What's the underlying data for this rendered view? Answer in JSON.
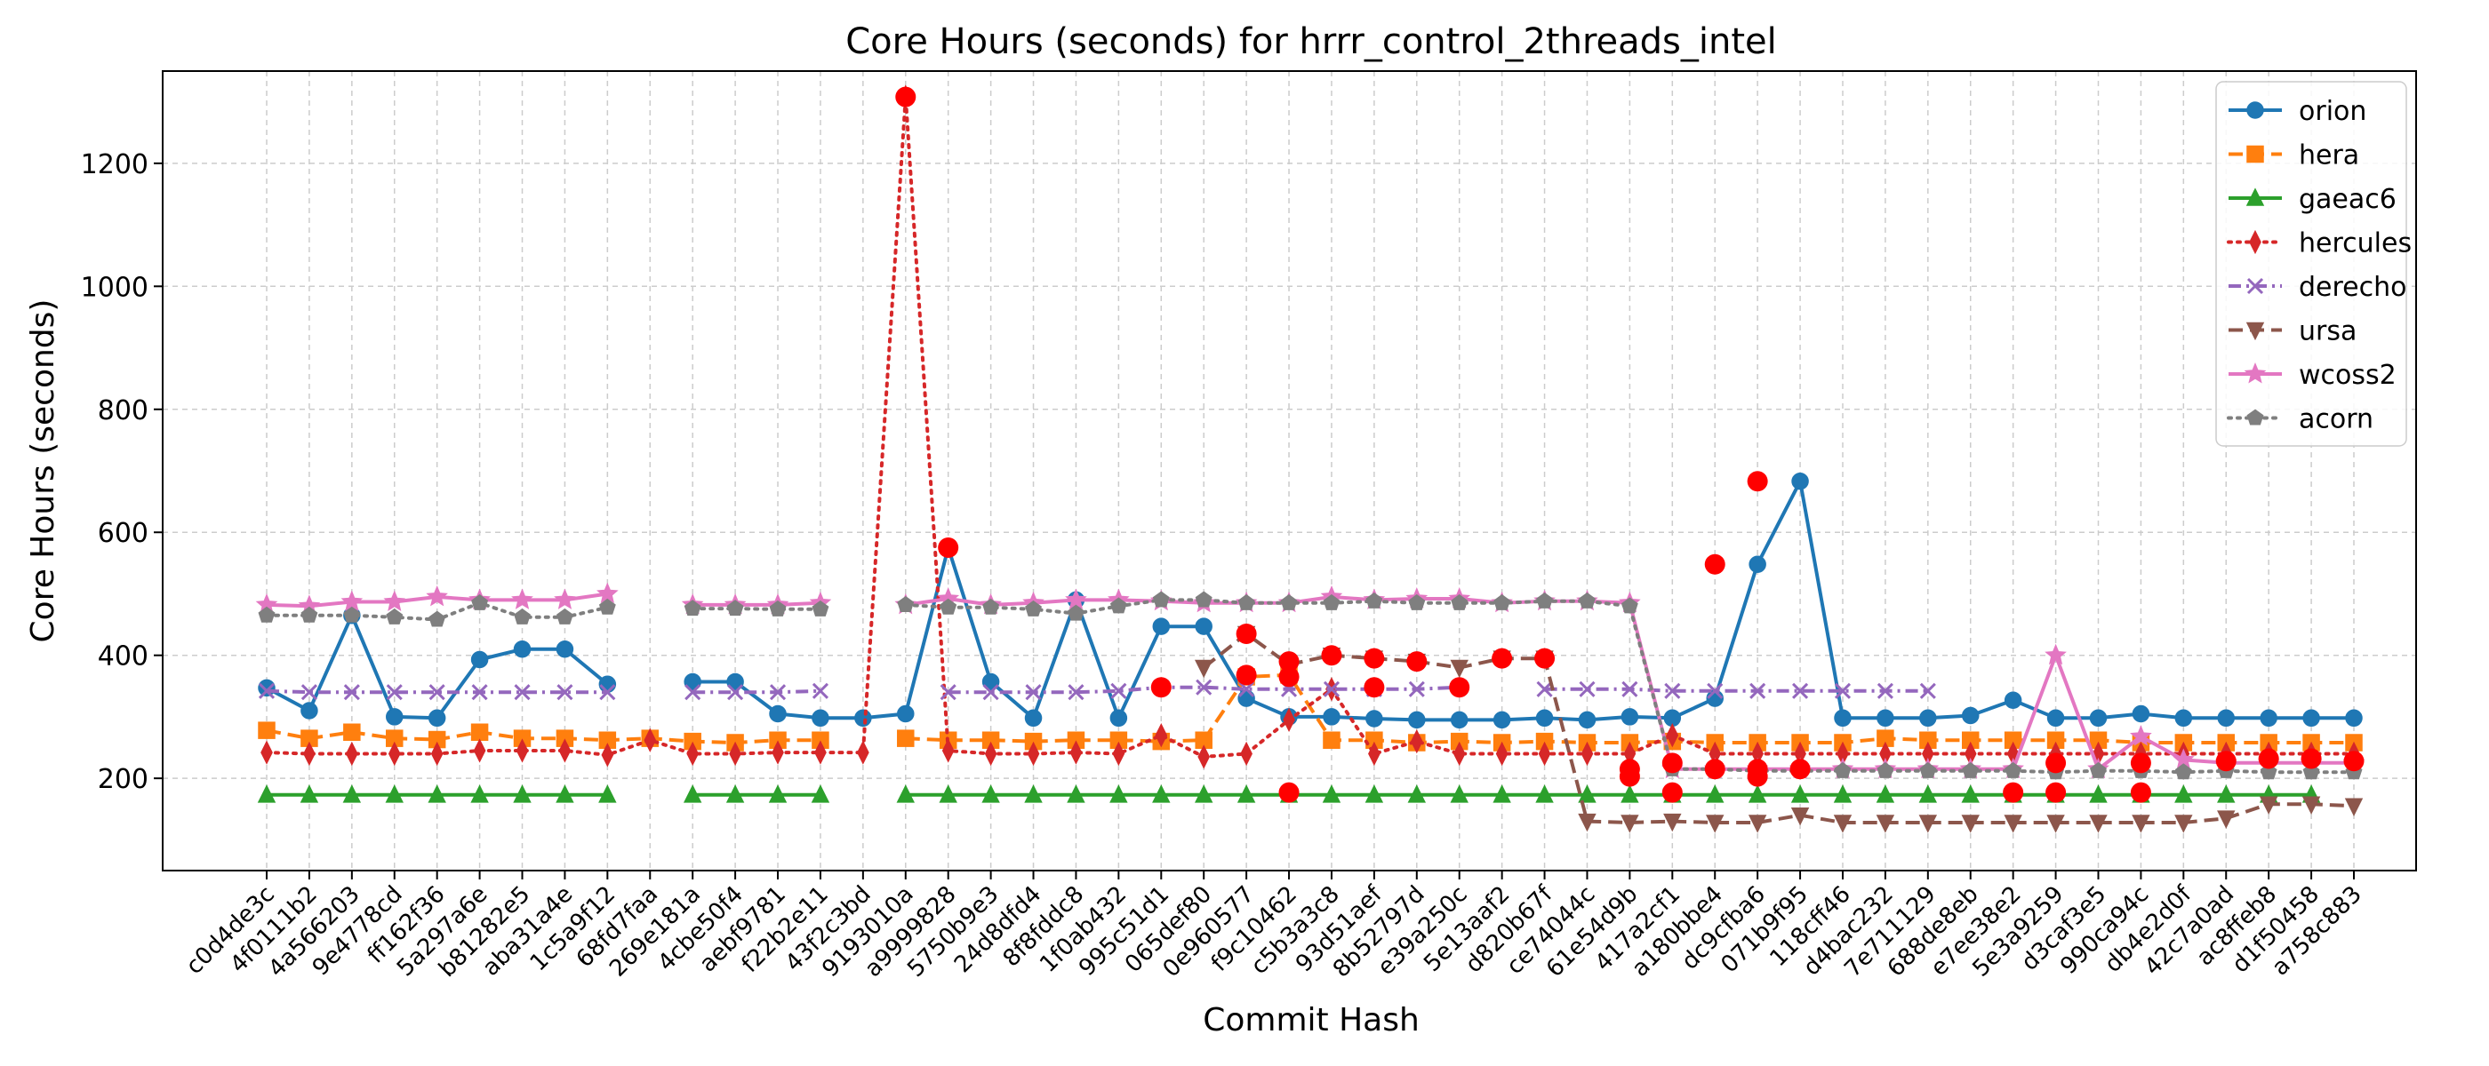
{
  "chart_data": {
    "type": "line",
    "title": "Core Hours (seconds) for hrrr_control_2threads_intel",
    "xlabel": "Commit Hash",
    "ylabel": "Core Hours (seconds)",
    "ylim": [
      50,
      1350
    ],
    "yticks": [
      200,
      400,
      600,
      800,
      1000,
      1200
    ],
    "grid": true,
    "legend_position": "top-right",
    "categories": [
      "c0d4de3c",
      "4f0111b2",
      "4a566203",
      "9e4778cd",
      "ff162f36",
      "5a297a6e",
      "b81282e5",
      "aba31a4e",
      "1c5a9f12",
      "68fd7faa",
      "269e181a",
      "4cbe50f4",
      "aebf9781",
      "f22b2e11",
      "43f2c3bd",
      "9193010a",
      "a9999828",
      "5750b9e3",
      "24d8dfd4",
      "8f8fddc8",
      "1f0ab432",
      "995c51d1",
      "065def80",
      "0e960577",
      "f9c10462",
      "c5b3a3c8",
      "93d51aef",
      "8b52797d",
      "e39a250c",
      "5e13aaf2",
      "d820b67f",
      "ce74044c",
      "61e54d9b",
      "417a2cf1",
      "a180bbe4",
      "dc9cfba6",
      "071b9f95",
      "118cff46",
      "d4bac232",
      "7e711129",
      "688de8eb",
      "e7ee38e2",
      "5e3a9259",
      "d3caf3e5",
      "990ca94c",
      "db4e2d0f",
      "42c7a0ad",
      "ac8ffeb8",
      "d1f50458",
      "a758c883"
    ],
    "series": [
      {
        "name": "orion",
        "color": "#1f77b4",
        "marker": "circle",
        "dash": "solid",
        "values": [
          347,
          310,
          465,
          300,
          298,
          393,
          410,
          410,
          353,
          null,
          357,
          357,
          305,
          298,
          298,
          305,
          575,
          357,
          298,
          490,
          298,
          447,
          447,
          330,
          300,
          300,
          297,
          295,
          295,
          295,
          298,
          295,
          300,
          298,
          330,
          548,
          683,
          298,
          298,
          298,
          302,
          327,
          298,
          298,
          305,
          298,
          298,
          298,
          298,
          298
        ]
      },
      {
        "name": "hera",
        "color": "#ff7f0e",
        "marker": "square",
        "dash": "dashed",
        "values": [
          278,
          265,
          275,
          265,
          263,
          275,
          265,
          265,
          262,
          265,
          260,
          258,
          262,
          262,
          null,
          265,
          262,
          262,
          260,
          262,
          262,
          260,
          262,
          365,
          368,
          262,
          262,
          258,
          260,
          258,
          260,
          258,
          258,
          260,
          258,
          258,
          258,
          258,
          265,
          262,
          262,
          262,
          262,
          262,
          258,
          258,
          258,
          258,
          258,
          258
        ]
      },
      {
        "name": "gaeac6",
        "color": "#2ca02c",
        "marker": "triangle-up",
        "dash": "solid",
        "values": [
          173,
          173,
          173,
          173,
          173,
          173,
          173,
          173,
          173,
          null,
          173,
          173,
          173,
          173,
          null,
          173,
          173,
          173,
          173,
          173,
          173,
          173,
          173,
          173,
          173,
          173,
          173,
          173,
          173,
          173,
          173,
          173,
          173,
          173,
          173,
          173,
          173,
          173,
          173,
          173,
          173,
          173,
          173,
          173,
          173,
          173,
          173,
          173,
          173,
          null
        ]
      },
      {
        "name": "hercules",
        "color": "#d62728",
        "marker": "diamond",
        "dash": "dotted",
        "values": [
          242,
          240,
          240,
          240,
          240,
          245,
          245,
          245,
          238,
          262,
          240,
          240,
          242,
          242,
          242,
          1308,
          245,
          240,
          240,
          242,
          240,
          270,
          235,
          240,
          295,
          345,
          240,
          260,
          240,
          240,
          240,
          240,
          240,
          270,
          240,
          240,
          240,
          240,
          240,
          240,
          240,
          240,
          240,
          240,
          240,
          240,
          240,
          240,
          240,
          240
        ]
      },
      {
        "name": "derecho",
        "color": "#9467bd",
        "marker": "x",
        "dash": "dashdot",
        "values": [
          342,
          340,
          340,
          340,
          340,
          340,
          340,
          340,
          340,
          null,
          340,
          340,
          340,
          342,
          null,
          null,
          340,
          340,
          340,
          340,
          342,
          348,
          348,
          345,
          345,
          345,
          345,
          345,
          348,
          null,
          345,
          345,
          345,
          342,
          342,
          342,
          342,
          342,
          342,
          342,
          null,
          null,
          null,
          null,
          null,
          null,
          null,
          null,
          null,
          null
        ]
      },
      {
        "name": "ursa",
        "color": "#8c564b",
        "marker": "triangle-down",
        "dash": "dashed",
        "values": [
          null,
          null,
          null,
          null,
          null,
          null,
          null,
          null,
          null,
          null,
          null,
          null,
          null,
          null,
          null,
          null,
          null,
          null,
          null,
          null,
          null,
          null,
          380,
          435,
          385,
          400,
          395,
          390,
          380,
          395,
          395,
          130,
          128,
          130,
          128,
          128,
          140,
          128,
          128,
          128,
          128,
          128,
          128,
          128,
          128,
          128,
          135,
          158,
          158,
          155
        ]
      },
      {
        "name": "wcoss2",
        "color": "#e377c2",
        "marker": "star",
        "dash": "solid",
        "values": [
          482,
          480,
          487,
          487,
          495,
          490,
          490,
          490,
          500,
          null,
          482,
          482,
          482,
          485,
          null,
          482,
          492,
          482,
          485,
          490,
          490,
          488,
          485,
          485,
          485,
          495,
          490,
          492,
          492,
          485,
          488,
          488,
          485,
          215,
          215,
          215,
          215,
          215,
          215,
          215,
          215,
          215,
          400,
          215,
          268,
          230,
          225,
          225,
          225,
          225
        ]
      },
      {
        "name": "acorn",
        "color": "#7f7f7f",
        "marker": "pentagon",
        "dash": "dotted",
        "values": [
          465,
          465,
          465,
          462,
          458,
          485,
          462,
          462,
          478,
          null,
          476,
          476,
          475,
          475,
          null,
          482,
          478,
          478,
          475,
          468,
          480,
          490,
          490,
          485,
          485,
          485,
          488,
          485,
          485,
          485,
          488,
          488,
          480,
          215,
          215,
          212,
          212,
          212,
          212,
          212,
          212,
          212,
          210,
          212,
          212,
          210,
          212,
          210,
          210,
          210
        ]
      }
    ],
    "highlight_color": "#ff0000",
    "highlights": [
      {
        "x": "9193010a",
        "y": 1308
      },
      {
        "x": "a9999828",
        "y": 575
      },
      {
        "x": "995c51d1",
        "y": 348
      },
      {
        "x": "0e960577",
        "y": 435
      },
      {
        "x": "0e960577",
        "y": 368
      },
      {
        "x": "f9c10462",
        "y": 390
      },
      {
        "x": "f9c10462",
        "y": 365
      },
      {
        "x": "f9c10462",
        "y": 177
      },
      {
        "x": "c5b3a3c8",
        "y": 400
      },
      {
        "x": "93d51aef",
        "y": 395
      },
      {
        "x": "93d51aef",
        "y": 348
      },
      {
        "x": "8b52797d",
        "y": 390
      },
      {
        "x": "e39a250c",
        "y": 348
      },
      {
        "x": "5e13aaf2",
        "y": 395
      },
      {
        "x": "d820b67f",
        "y": 395
      },
      {
        "x": "61e54d9b",
        "y": 215
      },
      {
        "x": "61e54d9b",
        "y": 203
      },
      {
        "x": "417a2cf1",
        "y": 225
      },
      {
        "x": "417a2cf1",
        "y": 177
      },
      {
        "x": "a180bbe4",
        "y": 215
      },
      {
        "x": "a180bbe4",
        "y": 548
      },
      {
        "x": "dc9cfba6",
        "y": 683
      },
      {
        "x": "dc9cfba6",
        "y": 215
      },
      {
        "x": "dc9cfba6",
        "y": 203
      },
      {
        "x": "071b9f95",
        "y": 215
      },
      {
        "x": "e7ee38e2",
        "y": 177
      },
      {
        "x": "5e3a9259",
        "y": 177
      },
      {
        "x": "5e3a9259",
        "y": 225
      },
      {
        "x": "990ca94c",
        "y": 177
      },
      {
        "x": "990ca94c",
        "y": 225
      },
      {
        "x": "42c7a0ad",
        "y": 228
      },
      {
        "x": "ac8ffeb8",
        "y": 232
      },
      {
        "x": "d1f50458",
        "y": 232
      },
      {
        "x": "a758c883",
        "y": 228
      }
    ]
  }
}
